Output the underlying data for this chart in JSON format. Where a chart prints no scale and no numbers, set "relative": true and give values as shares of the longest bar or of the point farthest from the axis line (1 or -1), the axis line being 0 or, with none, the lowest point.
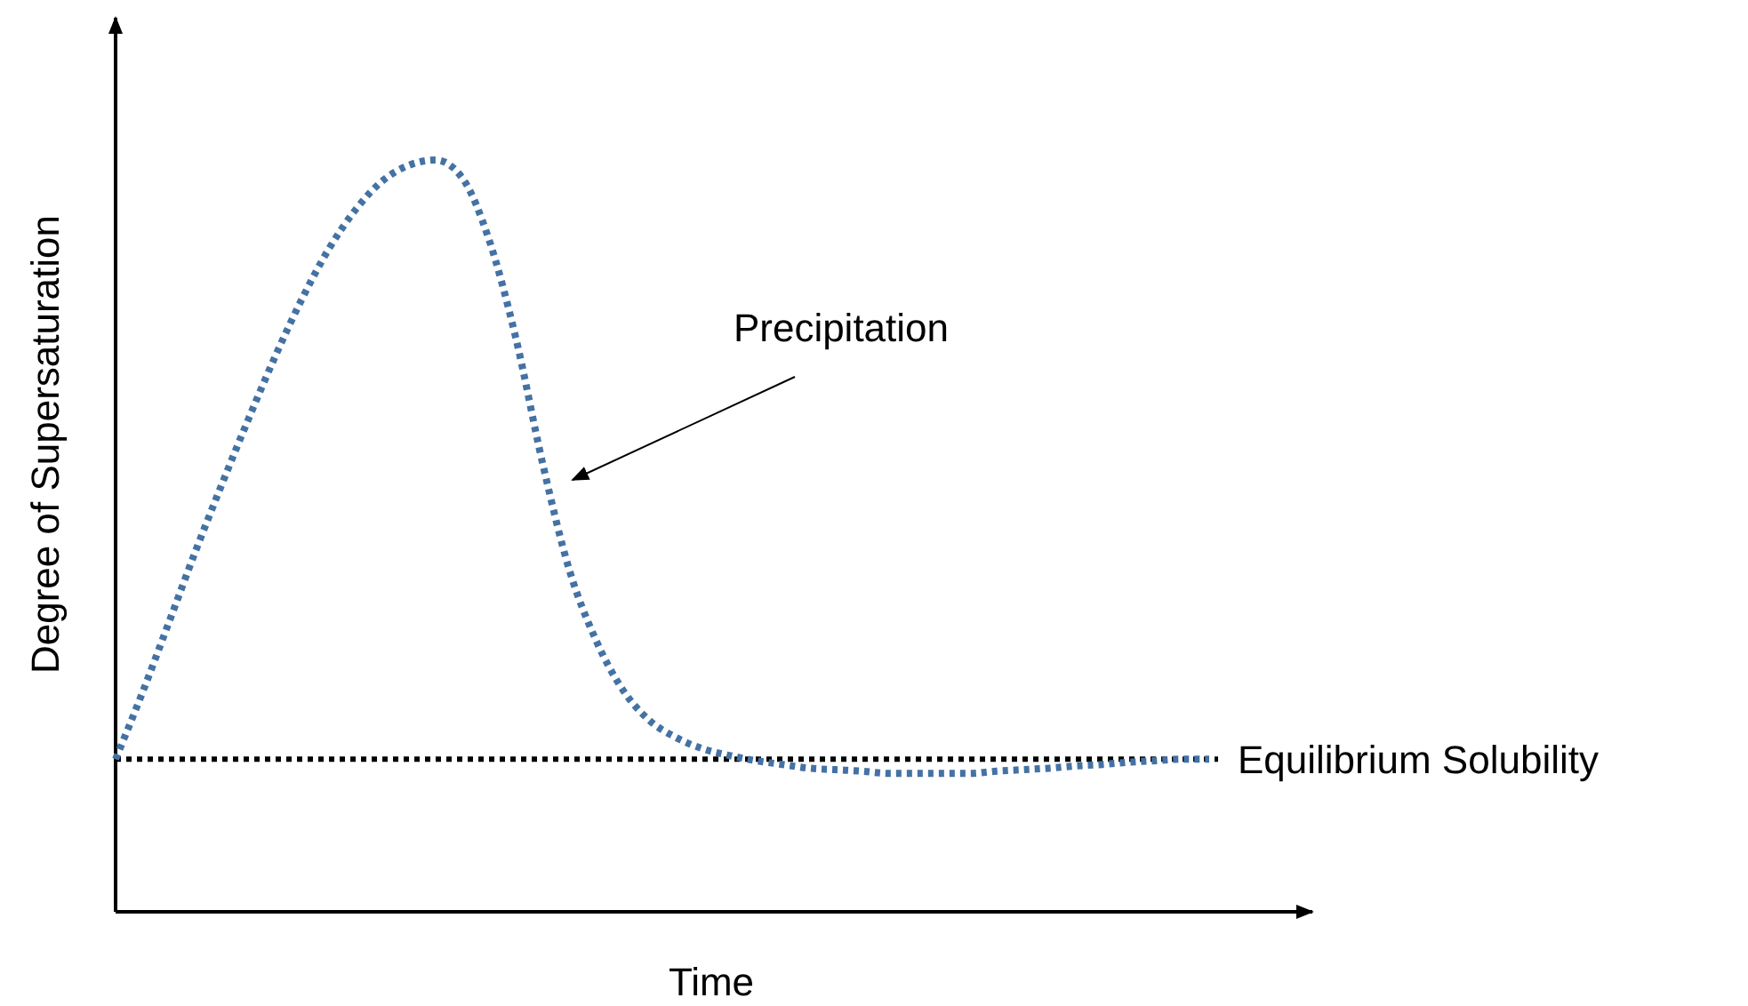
{
  "chart_data": {
    "type": "line",
    "xlabel": "Time",
    "ylabel": "Degree of Supersaturation",
    "relative": true,
    "categories": [
      null,
      null,
      null,
      null,
      null,
      null,
      null,
      null,
      null,
      null,
      null,
      null,
      null,
      null,
      null,
      null,
      null,
      null,
      null,
      null,
      null,
      null,
      null,
      null,
      null,
      null,
      null,
      null,
      null,
      null,
      null,
      null,
      null,
      null,
      null,
      null,
      null,
      null,
      null,
      null,
      null,
      null
    ],
    "series": [
      {
        "color": "#4472a4",
        "line_style": "dotted",
        "values": [
          0.203,
          0.291,
          0.385,
          0.48,
          0.57,
          0.657,
          0.74,
          0.816,
          0.882,
          0.934,
          0.972,
          0.993,
          1,
          0.976,
          0.894,
          0.764,
          0.598,
          0.456,
          0.362,
          0.296,
          0.255,
          0.232,
          0.217,
          0.208,
          0.201,
          0.196,
          0.191,
          0.189,
          0.187,
          0.184,
          0.184,
          0.184,
          0.184,
          0.187,
          0.189,
          0.191,
          0.194,
          0.196,
          0.199,
          0.201,
          0.203,
          0.203
        ]
      }
    ],
    "ref_lines": [
      {
        "axis": "y",
        "value": 0.203,
        "label": "Equilibrium Solubility",
        "color": "#000000",
        "line_style": "dotted"
      }
    ],
    "annotations": [
      "Precipitation"
    ]
  }
}
